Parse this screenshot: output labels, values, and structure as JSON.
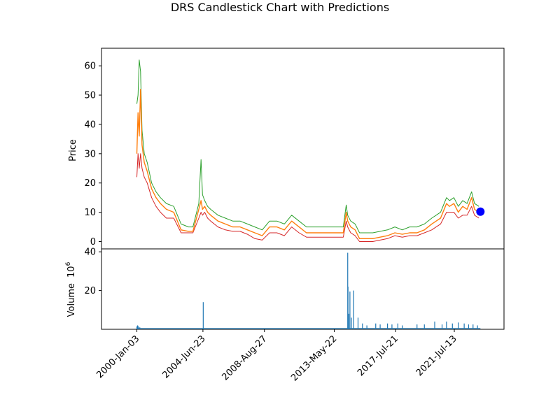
{
  "chart_data": {
    "type": "line",
    "title": "DRS Candlestick Chart with Predictions",
    "price_panel": {
      "ylabel": "Price",
      "ylim": [
        -2.5,
        66
      ],
      "yticks": [
        0,
        10,
        20,
        30,
        40,
        50,
        60
      ],
      "xlim": [
        1997.6,
        2024.9
      ],
      "series": [
        {
          "name": "price",
          "colors": {
            "high": "#2ca02c",
            "low": "#d62728",
            "close": "#ff7f0e",
            "open": "#1f77b4"
          },
          "x": [
            2000.0,
            2000.08,
            2000.16,
            2000.25,
            2000.35,
            2000.5,
            2000.7,
            2001.0,
            2001.3,
            2001.6,
            2002.0,
            2002.5,
            2003.0,
            2003.5,
            2003.8,
            2004.2,
            2004.35,
            2004.45,
            2004.6,
            2004.8,
            2005.0,
            2005.5,
            2006.0,
            2006.5,
            2007.0,
            2007.5,
            2008.0,
            2008.5,
            2009.0,
            2009.5,
            2010.0,
            2010.5,
            2011.0,
            2011.5,
            2012.0,
            2012.5,
            2013.0,
            2013.5,
            2014.0,
            2014.2,
            2014.3,
            2014.5,
            2014.8,
            2015.1,
            2015.5,
            2016.0,
            2016.5,
            2017.0,
            2017.5,
            2018.0,
            2018.5,
            2019.0,
            2019.5,
            2020.0,
            2020.3,
            2020.6,
            2021.0,
            2021.2,
            2021.5,
            2021.8,
            2022.1,
            2022.4,
            2022.7,
            2022.9,
            2023.2
          ],
          "close": [
            30,
            44,
            36,
            52,
            33,
            27,
            24,
            18,
            15,
            13,
            11,
            10,
            4,
            3.5,
            3.5,
            11,
            14,
            11,
            12,
            10,
            9,
            7,
            6,
            5,
            5,
            4,
            3,
            2,
            5,
            5,
            4,
            7,
            5,
            3,
            3,
            3,
            3,
            3,
            3,
            10,
            7,
            5,
            4,
            1,
            1,
            1,
            1.5,
            2,
            3,
            2.5,
            3,
            3,
            4,
            6,
            7,
            8,
            13,
            12,
            13,
            10,
            12,
            11,
            15,
            11,
            10
          ],
          "high": [
            47,
            50,
            62,
            58,
            38,
            30,
            27,
            20,
            17,
            15,
            13,
            12,
            6,
            5,
            5,
            13,
            28,
            16,
            14,
            12,
            11,
            9,
            8,
            7,
            7,
            6,
            5,
            4,
            7,
            7,
            6,
            9,
            7,
            5,
            5,
            5,
            5,
            5,
            5,
            12.5,
            9,
            7,
            6,
            3,
            3,
            3,
            3.5,
            4,
            5,
            4,
            5,
            5,
            6,
            8,
            9,
            10,
            15,
            14,
            15,
            12,
            14,
            13,
            17,
            13,
            12
          ],
          "low": [
            22,
            30,
            25,
            30,
            25,
            22,
            20,
            15,
            12,
            10,
            8,
            8,
            3,
            3,
            3,
            8,
            10,
            9,
            10,
            8,
            7,
            5,
            4,
            3.5,
            3.5,
            2.5,
            1,
            0.5,
            3,
            3,
            2,
            5,
            3,
            1.5,
            1.5,
            1.5,
            1.5,
            1.5,
            1.5,
            7,
            5,
            3,
            2,
            0,
            0,
            0,
            0.5,
            1,
            2,
            1.5,
            2,
            2,
            3,
            4,
            5,
            6,
            10,
            10,
            10,
            8,
            9,
            9,
            12,
            9,
            8
          ]
        }
      ],
      "prediction": {
        "x": 2023.3,
        "y": 10.2,
        "color": "#0000ff"
      }
    },
    "volume_panel": {
      "ylabel": "Volume",
      "ylabel_exponent_base": "10",
      "ylabel_exponent": "6",
      "ylim": [
        0,
        41.5
      ],
      "yticks": [
        20,
        40
      ],
      "color": "#1f77b4",
      "x": [
        2000.0,
        2000.05,
        2000.1,
        2000.2,
        2004.5,
        2014.3,
        2014.32,
        2014.38,
        2014.45,
        2014.55,
        2014.7,
        2015.0,
        2015.3,
        2015.6,
        2016.2,
        2016.5,
        2017.0,
        2017.3,
        2017.7,
        2018.0,
        2019.0,
        2019.5,
        2020.2,
        2020.7,
        2021.0,
        2021.4,
        2021.8,
        2022.2,
        2022.5,
        2022.8,
        2023.1
      ],
      "values": [
        1.5,
        2,
        1.5,
        1,
        14,
        39.5,
        22,
        8,
        19.5,
        6,
        20,
        6,
        3,
        2,
        3,
        2.5,
        3,
        2.5,
        3,
        2,
        2.5,
        2.5,
        4,
        2.5,
        4,
        3,
        3.5,
        3,
        2.5,
        2.5,
        2
      ]
    },
    "xaxis": {
      "tick_labels": [
        "2000-Jan-03",
        "2004-Jun-23",
        "2008-Aug-27",
        "2013-May-22",
        "2017-Jul-21",
        "2021-Jul-13"
      ],
      "tick_values": [
        2000.0,
        2004.48,
        2008.65,
        2013.39,
        2017.55,
        2021.53
      ]
    }
  }
}
